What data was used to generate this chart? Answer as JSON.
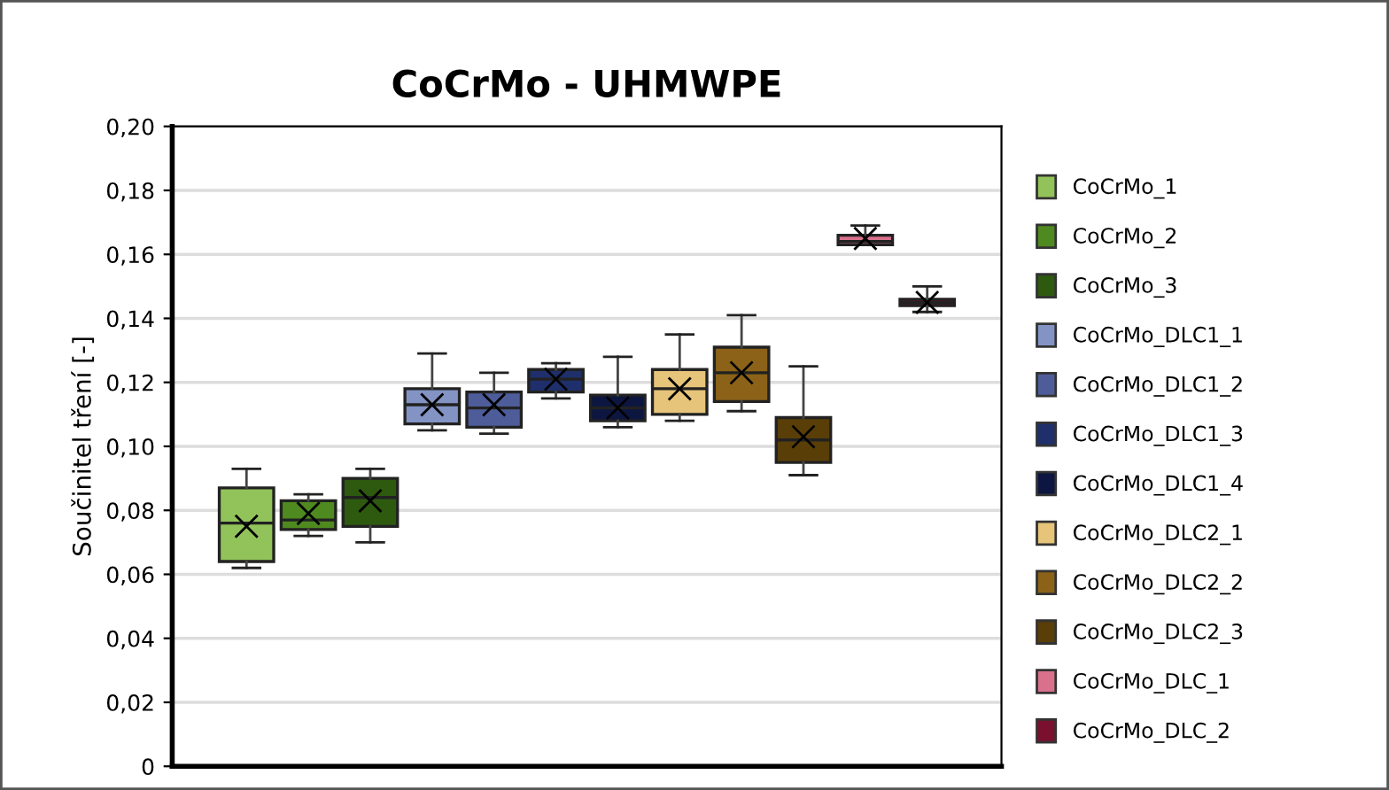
{
  "chart_data": {
    "type": "box",
    "title": "CoCrMo - UHMWPE",
    "ylabel": "Součinitel tření [-]",
    "categories": [
      null
    ],
    "ylim": [
      0,
      0.2
    ],
    "yticks": [
      {
        "value": 0,
        "label": "0"
      },
      {
        "value": 0.02,
        "label": "0,02"
      },
      {
        "value": 0.04,
        "label": "0,04"
      },
      {
        "value": 0.06,
        "label": "0,06"
      },
      {
        "value": 0.08,
        "label": "0,08"
      },
      {
        "value": 0.1,
        "label": "0,10"
      },
      {
        "value": 0.12,
        "label": "0,12"
      },
      {
        "value": 0.14,
        "label": "0,14"
      },
      {
        "value": 0.16,
        "label": "0,16"
      },
      {
        "value": 0.18,
        "label": "0,18"
      },
      {
        "value": 0.2,
        "label": "0,20"
      }
    ],
    "grid": "y",
    "legend": "right",
    "tick_labels": "y",
    "marker": "cross",
    "series": [
      {
        "name": "CoCrMo_1",
        "color": "#92c35a",
        "boxes": [
          {
            "low": 0.062,
            "q1": 0.064,
            "median": 0.076,
            "q3": 0.087,
            "high": 0.093,
            "mean": 0.075
          }
        ]
      },
      {
        "name": "CoCrMo_2",
        "color": "#4e8a1f",
        "boxes": [
          {
            "low": 0.072,
            "q1": 0.074,
            "median": 0.077,
            "q3": 0.083,
            "high": 0.085,
            "mean": 0.079
          }
        ]
      },
      {
        "name": "CoCrMo_3",
        "color": "#2e5a0f",
        "boxes": [
          {
            "low": 0.07,
            "q1": 0.075,
            "median": 0.084,
            "q3": 0.09,
            "high": 0.093,
            "mean": 0.083
          }
        ]
      },
      {
        "name": "CoCrMo_DLC1_1",
        "color": "#8393c3",
        "boxes": [
          {
            "low": 0.105,
            "q1": 0.107,
            "median": 0.113,
            "q3": 0.118,
            "high": 0.129,
            "mean": 0.113
          }
        ]
      },
      {
        "name": "CoCrMo_DLC1_2",
        "color": "#4e5d9a",
        "boxes": [
          {
            "low": 0.104,
            "q1": 0.106,
            "median": 0.112,
            "q3": 0.117,
            "high": 0.123,
            "mean": 0.113
          }
        ]
      },
      {
        "name": "CoCrMo_DLC1_3",
        "color": "#1e2f6b",
        "boxes": [
          {
            "low": 0.115,
            "q1": 0.117,
            "median": 0.121,
            "q3": 0.124,
            "high": 0.126,
            "mean": 0.121
          }
        ]
      },
      {
        "name": "CoCrMo_DLC1_4",
        "color": "#0c1640",
        "boxes": [
          {
            "low": 0.106,
            "q1": 0.108,
            "median": 0.112,
            "q3": 0.116,
            "high": 0.128,
            "mean": 0.112
          }
        ]
      },
      {
        "name": "CoCrMo_DLC2_1",
        "color": "#e6c47a",
        "boxes": [
          {
            "low": 0.108,
            "q1": 0.11,
            "median": 0.118,
            "q3": 0.124,
            "high": 0.135,
            "mean": 0.118
          }
        ]
      },
      {
        "name": "CoCrMo_DLC2_2",
        "color": "#8b6218",
        "boxes": [
          {
            "low": 0.111,
            "q1": 0.114,
            "median": 0.123,
            "q3": 0.131,
            "high": 0.141,
            "mean": 0.123
          }
        ]
      },
      {
        "name": "CoCrMo_DLC2_3",
        "color": "#5a3e08",
        "boxes": [
          {
            "low": 0.091,
            "q1": 0.095,
            "median": 0.102,
            "q3": 0.109,
            "high": 0.125,
            "mean": 0.103
          }
        ]
      },
      {
        "name": "CoCrMo_DLC_1",
        "color": "#d9708c",
        "boxes": [
          {
            "low": 0.163,
            "q1": 0.163,
            "median": 0.164,
            "q3": 0.166,
            "high": 0.169,
            "mean": 0.165
          }
        ]
      },
      {
        "name": "CoCrMo_DLC_2",
        "color": "#7a0f2e",
        "boxes": [
          {
            "low": 0.142,
            "q1": 0.144,
            "median": 0.145,
            "q3": 0.146,
            "high": 0.15,
            "mean": 0.145
          }
        ]
      }
    ]
  }
}
